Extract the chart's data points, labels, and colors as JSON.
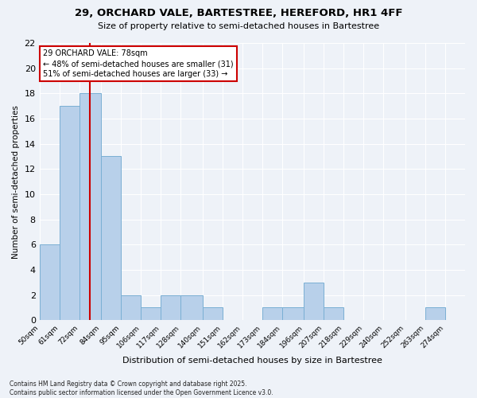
{
  "title1": "29, ORCHARD VALE, BARTESTREE, HEREFORD, HR1 4FF",
  "title2": "Size of property relative to semi-detached houses in Bartestree",
  "xlabel": "Distribution of semi-detached houses by size in Bartestree",
  "ylabel": "Number of semi-detached properties",
  "footer1": "Contains HM Land Registry data © Crown copyright and database right 2025.",
  "footer2": "Contains public sector information licensed under the Open Government Licence v3.0.",
  "bins": [
    50,
    61,
    72,
    84,
    95,
    106,
    117,
    128,
    140,
    151,
    162,
    173,
    184,
    196,
    207,
    218,
    229,
    240,
    252,
    263,
    274,
    285
  ],
  "counts": [
    6,
    17,
    18,
    13,
    2,
    1,
    2,
    2,
    1,
    0,
    0,
    1,
    1,
    3,
    1,
    0,
    0,
    0,
    0,
    1,
    0
  ],
  "bar_color": "#b8d0ea",
  "bar_edge_color": "#7aafd4",
  "red_line_x": 78,
  "red_line_color": "#cc0000",
  "annotation_text": "29 ORCHARD VALE: 78sqm\n← 48% of semi-detached houses are smaller (31)\n51% of semi-detached houses are larger (33) →",
  "annotation_box_color": "white",
  "annotation_box_edge_color": "#cc0000",
  "ylim": [
    0,
    22
  ],
  "yticks": [
    0,
    2,
    4,
    6,
    8,
    10,
    12,
    14,
    16,
    18,
    20,
    22
  ],
  "xlim_min": 50,
  "xlim_max": 285,
  "bg_color": "#eef2f8",
  "grid_color": "white",
  "tick_labels": [
    "50sqm",
    "61sqm",
    "72sqm",
    "84sqm",
    "95sqm",
    "106sqm",
    "117sqm",
    "128sqm",
    "140sqm",
    "151sqm",
    "162sqm",
    "173sqm",
    "184sqm",
    "196sqm",
    "207sqm",
    "218sqm",
    "229sqm",
    "240sqm",
    "252sqm",
    "263sqm",
    "274sqm"
  ]
}
